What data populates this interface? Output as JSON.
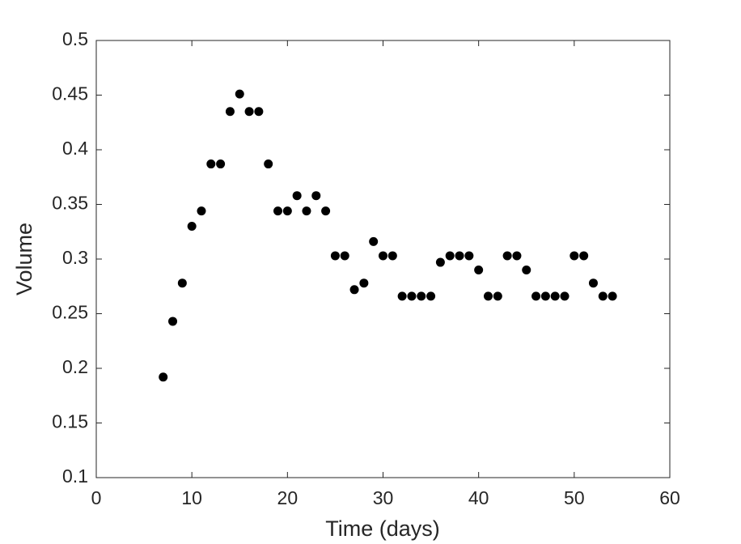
{
  "chart_data": {
    "type": "scatter",
    "x_label": "Time (days)",
    "y_label": "Volume",
    "x": [
      7,
      8,
      9,
      10,
      11,
      12,
      13,
      14,
      15,
      16,
      17,
      18,
      19,
      20,
      21,
      22,
      23,
      24,
      25,
      26,
      27,
      28,
      29,
      30,
      31,
      32,
      33,
      34,
      35,
      36,
      37,
      38,
      39,
      40,
      41,
      42,
      43,
      44,
      45,
      46,
      47,
      48,
      49,
      50,
      51,
      52,
      53,
      54
    ],
    "values": [
      0.192,
      0.243,
      0.278,
      0.33,
      0.344,
      0.387,
      0.387,
      0.435,
      0.451,
      0.435,
      0.435,
      0.387,
      0.344,
      0.344,
      0.358,
      0.344,
      0.358,
      0.344,
      0.303,
      0.303,
      0.272,
      0.278,
      0.316,
      0.303,
      0.303,
      0.266,
      0.266,
      0.266,
      0.266,
      0.297,
      0.303,
      0.303,
      0.303,
      0.29,
      0.266,
      0.266,
      0.303,
      0.303,
      0.29,
      0.266,
      0.266,
      0.266,
      0.266,
      0.303,
      0.303,
      0.278,
      0.266,
      0.266
    ],
    "color": "#000000",
    "xlim": [
      0,
      60
    ],
    "xticks": [
      0,
      10,
      20,
      30,
      40,
      50,
      60
    ],
    "ylim": [
      0.1,
      0.5
    ],
    "yticks": [
      0.1,
      0.15,
      0.2,
      0.25,
      0.3,
      0.35,
      0.4,
      0.45,
      0.5
    ],
    "grid": false
  }
}
